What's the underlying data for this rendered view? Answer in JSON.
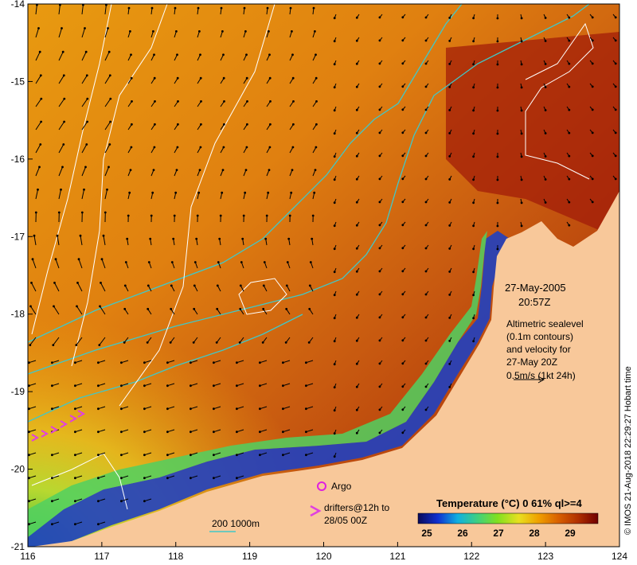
{
  "map": {
    "lon_ticks": [
      "116",
      "117",
      "118",
      "119",
      "120",
      "121",
      "122",
      "123",
      "124"
    ],
    "lat_ticks": [
      "-14",
      "-15",
      "-16",
      "-17",
      "-18",
      "-19",
      "-20",
      "-21"
    ],
    "lon_range": [
      116,
      124
    ],
    "lat_range": [
      -21,
      -14
    ]
  },
  "annotations": {
    "date": "27-May-2005",
    "time": "20:57Z",
    "alt_line1": "Altimetric sealevel",
    "alt_line2": "(0.1m contours)",
    "alt_line3": "and velocity for",
    "alt_line4": "27-May 20Z",
    "scale_label": "0.5m/s (1kt 24h)",
    "argo_label": "Argo",
    "drifters_line1": "drifters@12h to",
    "drifters_line2": "28/05 00Z",
    "depth_label": "200  1000m"
  },
  "colorbar": {
    "title": "Temperature (°C) 0 61% ql>=4",
    "ticks": [
      "25",
      "26",
      "27",
      "28",
      "29"
    ],
    "colors": [
      "#0a0a5a",
      "#1030d0",
      "#10b0e0",
      "#40d080",
      "#80e020",
      "#e8e020",
      "#f0a000",
      "#d86000",
      "#b03000",
      "#700000"
    ]
  },
  "credit": "© IMOS 21-Aug-2018 22:29:27 Hobart time",
  "colors": {
    "land": "#f8c89a",
    "contour": "#ffffff",
    "isobath": "#40c8c8",
    "argo": "#e020e0",
    "drifter": "#e040e0"
  }
}
